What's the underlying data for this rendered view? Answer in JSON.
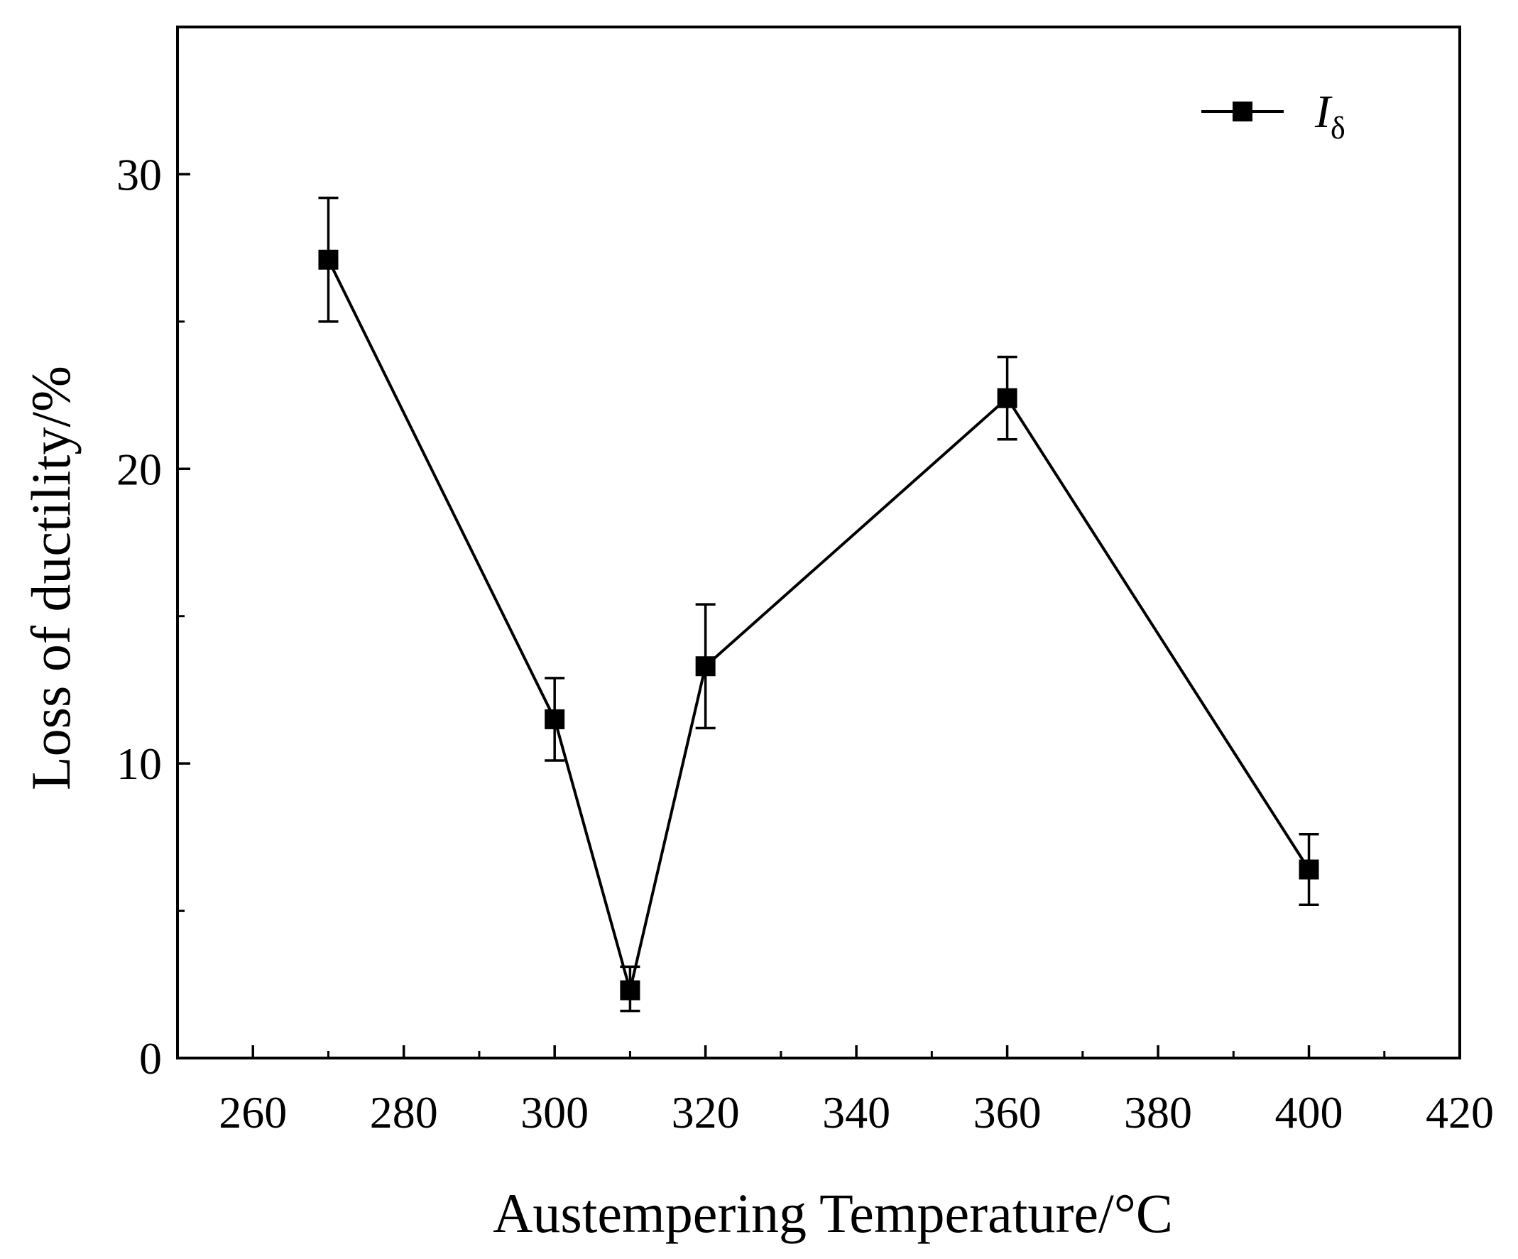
{
  "chart_data": {
    "type": "line",
    "title": "",
    "xlabel": "Austempering Temperature/°C",
    "ylabel": "Loss of ductility/%",
    "xlim": [
      250,
      420
    ],
    "ylim": [
      0,
      35
    ],
    "x_ticks": [
      260,
      280,
      300,
      320,
      340,
      360,
      380,
      400,
      420
    ],
    "x_minor_ticks": [
      270,
      290,
      310,
      330,
      350,
      370,
      390,
      410
    ],
    "y_ticks": [
      0,
      10,
      20,
      30
    ],
    "y_minor_ticks": [
      5,
      15,
      25
    ],
    "grid": false,
    "legend": {
      "position": "top-right",
      "entries": [
        {
          "name": "I",
          "subscript": "δ",
          "marker": "square",
          "line": "solid"
        }
      ]
    },
    "series": [
      {
        "name": "Iδ",
        "color": "#000000",
        "marker": "square",
        "x": [
          270,
          300,
          310,
          320,
          360,
          400
        ],
        "y": [
          27.1,
          11.5,
          2.3,
          13.3,
          22.4,
          6.4
        ],
        "err_low": [
          25.0,
          10.1,
          1.6,
          11.2,
          21.0,
          5.2
        ],
        "err_high": [
          29.2,
          12.9,
          3.1,
          15.4,
          23.8,
          7.6
        ]
      }
    ]
  }
}
